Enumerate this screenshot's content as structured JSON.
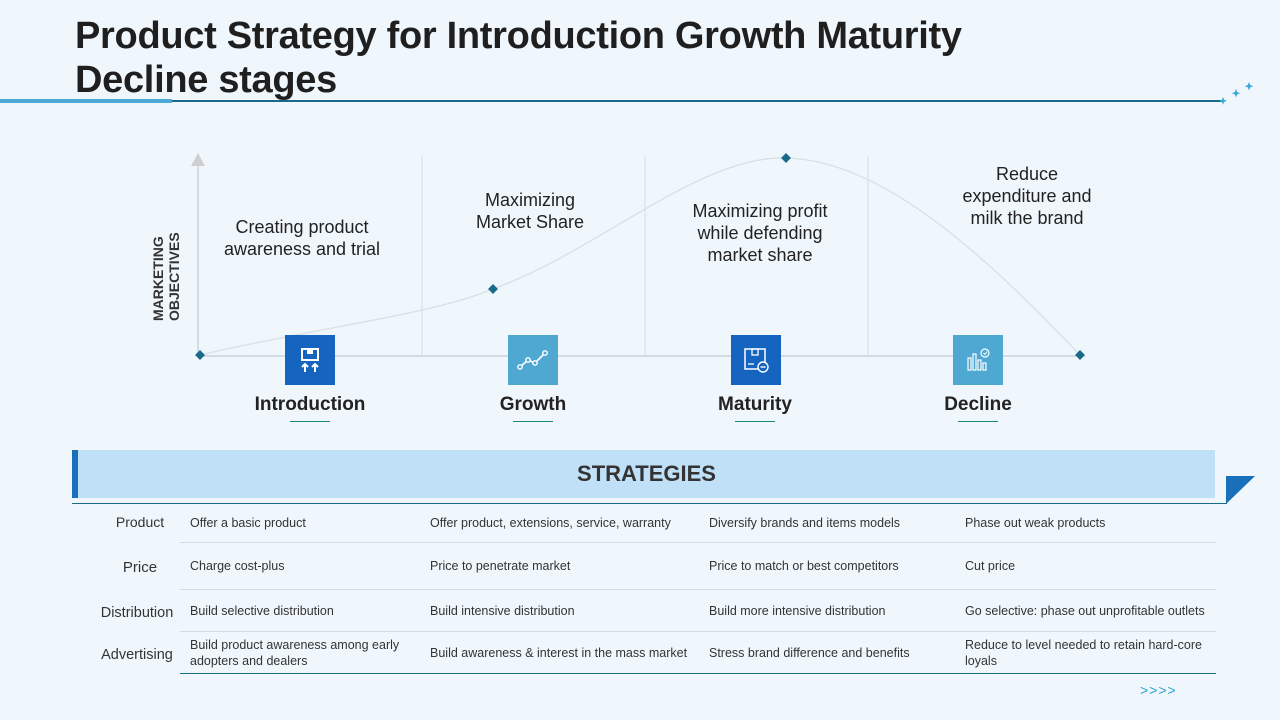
{
  "title": "Product Strategy for Introduction Growth Maturity Decline stages",
  "y_axis_label": "MARKETING OBJECTIVES",
  "stages": [
    {
      "name": "Introduction",
      "objective": "Creating product awareness and trial",
      "icon": "package-arrows-icon",
      "icon_color": "#1565c0"
    },
    {
      "name": "Growth",
      "objective": "Maximizing Market Share",
      "icon": "trend-line-icon",
      "icon_color": "#4ea8d2"
    },
    {
      "name": "Maturity",
      "objective": "Maximizing profit while defending market share",
      "icon": "box-minus-icon",
      "icon_color": "#1565c0"
    },
    {
      "name": "Decline",
      "objective": "Reduce expenditure and milk the brand",
      "icon": "bar-chart-icon",
      "icon_color": "#4ea8d2"
    }
  ],
  "strategies": {
    "heading": "STRATEGIES",
    "rows": [
      {
        "label": "Product",
        "cells": [
          "Offer  a basic product",
          "Offer  product,  extensions,  service,  warranty",
          "Diversify  brands  and items models",
          "Phase out weak products"
        ]
      },
      {
        "label": "Price",
        "cells": [
          "Charge  cost-plus",
          "Price to penetrate market",
          "Price to match or best competitors",
          "Cut price"
        ]
      },
      {
        "label": "Distribution",
        "cells": [
          "Build selective distribution",
          "Build intensive  distribution",
          "Build more  intensive distribution",
          "Go selective:  phase  out unprofitable outlets"
        ]
      },
      {
        "label": "Advertising",
        "cells": [
          "Build product  awareness  among early adopters and dealers",
          "Build awareness  & interest in the mass market",
          "Stress brand  difference  and benefits",
          "Reduce to level  needed  to retain hard-core loyals"
        ]
      }
    ]
  },
  "nav_arrows": ">>>>",
  "colors": {
    "accent": "#1a6fba",
    "light_accent": "#c0e0f8",
    "rule": "#1a6b8a",
    "curve_marker": "#1a6b8a"
  }
}
